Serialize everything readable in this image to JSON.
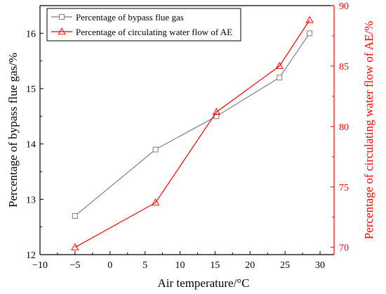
{
  "chart_data": {
    "type": "line",
    "title": "",
    "xlabel": "Air temperature/°C",
    "ylabel": "Percentage of bypass flue gas/%",
    "y2label": "Percentage of circulating water flow of AE/%",
    "xlim": [
      -10,
      32
    ],
    "ylim": [
      12,
      16.5
    ],
    "y2lim": [
      69.4,
      90
    ],
    "xticks": [
      -10,
      -5,
      0,
      5,
      10,
      15,
      20,
      25,
      30
    ],
    "yticks": [
      12,
      13,
      14,
      15,
      16
    ],
    "y2ticks": [
      70,
      75,
      80,
      85,
      90
    ],
    "grid": false,
    "legend_position": "top-left",
    "series": [
      {
        "name": "Percentage of bypass flue gas",
        "axis": "left",
        "marker": "square",
        "color": "#7f7f7f",
        "x": [
          -5,
          6.5,
          15.2,
          24.2,
          28.5
        ],
        "y": [
          12.7,
          13.9,
          14.5,
          15.2,
          16.0
        ]
      },
      {
        "name": "Percentage of circulating water flow of AE",
        "axis": "right",
        "marker": "triangle",
        "color": "#ff0000",
        "x": [
          -5,
          6.5,
          15.2,
          24.2,
          28.5
        ],
        "y": [
          70.0,
          73.7,
          81.2,
          85.0,
          88.8
        ]
      }
    ]
  }
}
